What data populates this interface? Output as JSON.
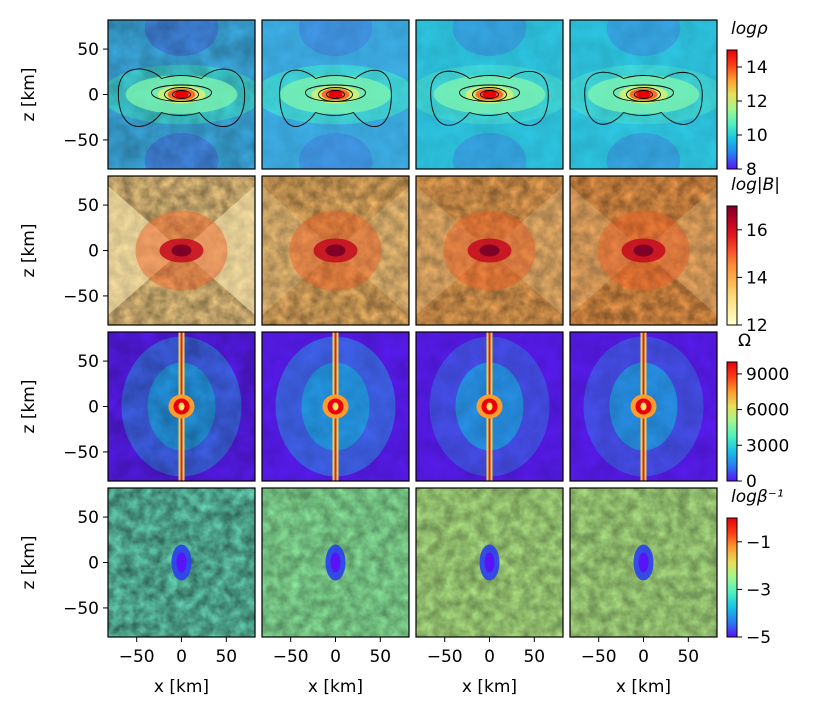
{
  "chart_data": {
    "type": "heatmap",
    "layout": {
      "rows": 4,
      "cols": 4
    },
    "xlabel": "x [km]",
    "ylabel": "z [km]",
    "xlim": [
      -82,
      82
    ],
    "ylim": [
      -82,
      82
    ],
    "xticks": [
      -50,
      0,
      50
    ],
    "yticks": [
      -50,
      0,
      50
    ],
    "rows": [
      {
        "quantity": "density",
        "colorbar_label": "logρ",
        "colormap": "rainbow",
        "clim": [
          8,
          15
        ],
        "colorbar_ticks": [
          8,
          10,
          12,
          14
        ],
        "contours": true
      },
      {
        "quantity": "magnetic field strength",
        "colorbar_label": "log|B|",
        "colormap": "YlOrRd",
        "clim": [
          12,
          17
        ],
        "colorbar_ticks": [
          12,
          14,
          16
        ],
        "contours": false
      },
      {
        "quantity": "angular velocity",
        "colorbar_label": "Ω",
        "colormap": "rainbow",
        "clim": [
          0,
          10000
        ],
        "colorbar_ticks": [
          0,
          3000,
          6000,
          9000
        ],
        "contours": false
      },
      {
        "quantity": "inverse plasma beta",
        "colorbar_label": "logβ⁻¹",
        "colormap": "rainbow",
        "clim": [
          -5,
          0
        ],
        "colorbar_ticks": [
          -5,
          -3,
          -1
        ],
        "contours": false
      }
    ]
  }
}
